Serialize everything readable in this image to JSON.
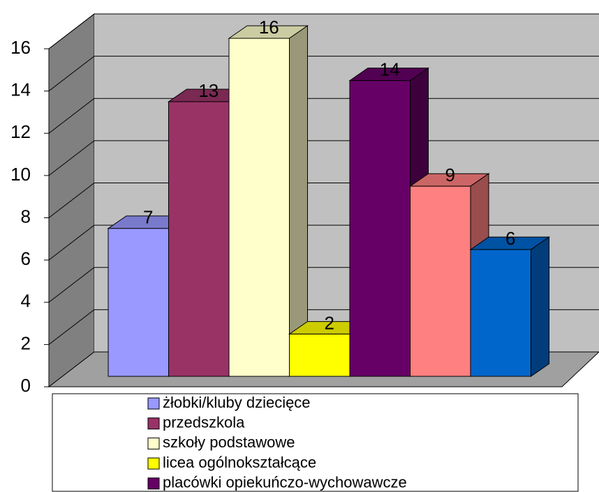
{
  "chart_data": {
    "type": "bar3d",
    "series": [
      {
        "name": "żłobki/kluby dziecięce",
        "color": "#9999ff",
        "values": [
          7
        ]
      },
      {
        "name": "przedszkola",
        "color": "#993366",
        "values": [
          13
        ]
      },
      {
        "name": "szkoły podstawowe",
        "color": "#ffffcc",
        "values": [
          16
        ]
      },
      {
        "name": "licea ogólnokształcące",
        "color": "#ffff00",
        "values": [
          2
        ]
      },
      {
        "name": "placówki opiekuńczo-wychowawcze",
        "color": "#660066",
        "values": [
          14
        ]
      },
      {
        "color": "#ff8080",
        "values": [
          9
        ]
      },
      {
        "color": "#0066cc",
        "values": [
          6
        ]
      }
    ],
    "ylim": [
      0,
      16
    ],
    "yticks": [
      0,
      2,
      4,
      6,
      8,
      10,
      12,
      14,
      16
    ],
    "grid": true,
    "legend": "bottom"
  }
}
